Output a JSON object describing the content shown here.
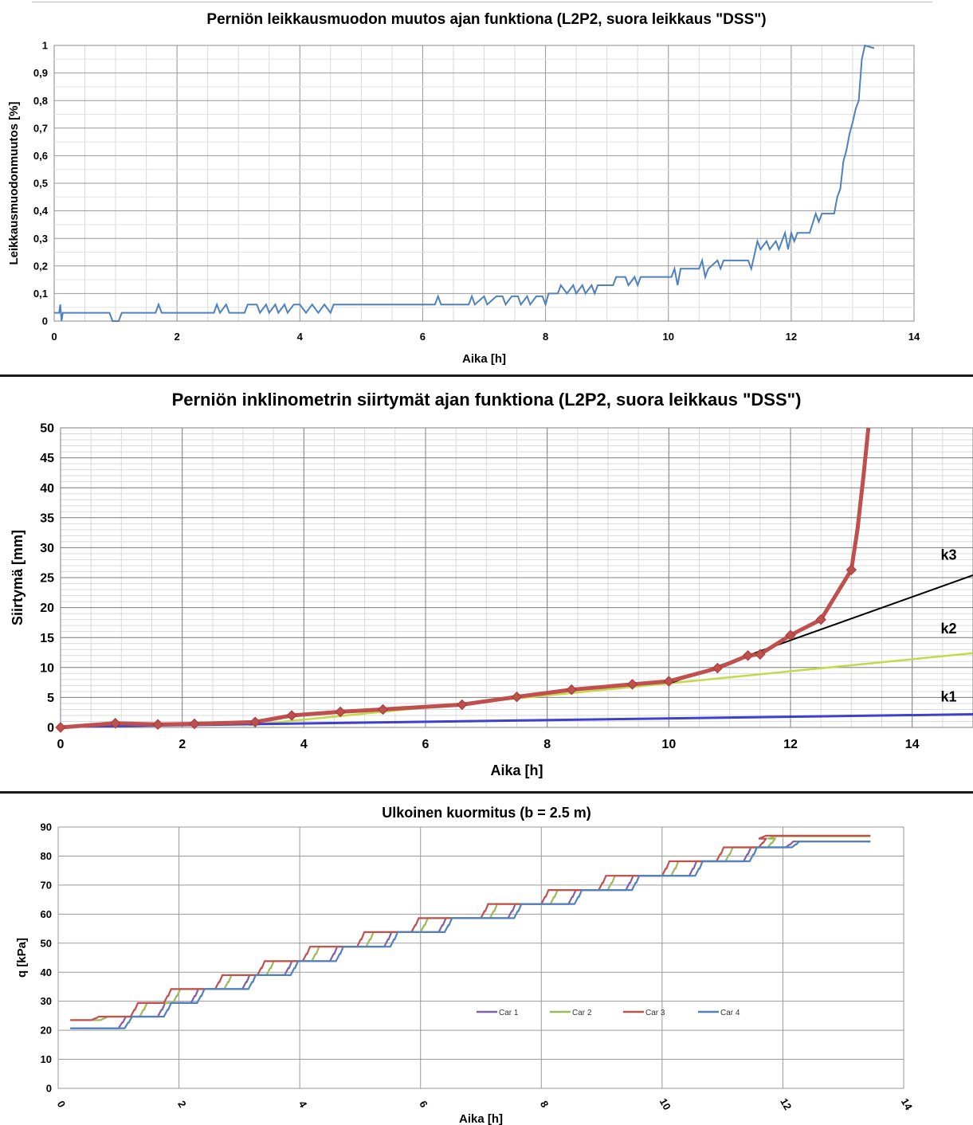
{
  "chart_data": [
    {
      "type": "line",
      "title": "Perniön leikkausmuodon muutos ajan funktiona (L2P2, suora leikkaus \"DSS\")",
      "xlabel": "Aika [h]",
      "ylabel": "Leikkausmuodonmuutos  [%]",
      "xlim": [
        0,
        14
      ],
      "ylim": [
        0,
        1
      ],
      "x_ticks": [
        "0",
        "2",
        "4",
        "6",
        "8",
        "10",
        "12",
        "14"
      ],
      "y_ticks": [
        "0",
        "0,1",
        "0,2",
        "0,3",
        "0,4",
        "0,5",
        "0,6",
        "0,7",
        "0,8",
        "0,9",
        "1"
      ],
      "grid": true,
      "series": [
        {
          "color": "#4f81bd",
          "points": [
            [
              0.0,
              0.03
            ],
            [
              0.08,
              0.03
            ],
            [
              0.1,
              0.06
            ],
            [
              0.12,
              0.0
            ],
            [
              0.14,
              0.03
            ],
            [
              0.9,
              0.03
            ],
            [
              0.95,
              0.0
            ],
            [
              1.05,
              0.0
            ],
            [
              1.1,
              0.03
            ],
            [
              1.65,
              0.03
            ],
            [
              1.7,
              0.06
            ],
            [
              1.75,
              0.03
            ],
            [
              2.6,
              0.03
            ],
            [
              2.65,
              0.06
            ],
            [
              2.7,
              0.03
            ],
            [
              2.8,
              0.06
            ],
            [
              2.85,
              0.03
            ],
            [
              3.1,
              0.03
            ],
            [
              3.15,
              0.06
            ],
            [
              3.3,
              0.06
            ],
            [
              3.35,
              0.03
            ],
            [
              3.45,
              0.06
            ],
            [
              3.5,
              0.03
            ],
            [
              3.6,
              0.06
            ],
            [
              3.65,
              0.03
            ],
            [
              3.75,
              0.06
            ],
            [
              3.8,
              0.03
            ],
            [
              3.9,
              0.06
            ],
            [
              4.0,
              0.06
            ],
            [
              4.1,
              0.03
            ],
            [
              4.2,
              0.06
            ],
            [
              4.3,
              0.03
            ],
            [
              4.4,
              0.06
            ],
            [
              4.5,
              0.03
            ],
            [
              4.55,
              0.06
            ],
            [
              6.2,
              0.06
            ],
            [
              6.25,
              0.09
            ],
            [
              6.3,
              0.06
            ],
            [
              6.75,
              0.06
            ],
            [
              6.8,
              0.09
            ],
            [
              6.85,
              0.06
            ],
            [
              7.0,
              0.09
            ],
            [
              7.05,
              0.06
            ],
            [
              7.2,
              0.09
            ],
            [
              7.3,
              0.09
            ],
            [
              7.35,
              0.06
            ],
            [
              7.45,
              0.09
            ],
            [
              7.55,
              0.09
            ],
            [
              7.6,
              0.06
            ],
            [
              7.7,
              0.09
            ],
            [
              7.75,
              0.06
            ],
            [
              7.85,
              0.09
            ],
            [
              7.95,
              0.09
            ],
            [
              8.0,
              0.06
            ],
            [
              8.05,
              0.1
            ],
            [
              8.2,
              0.1
            ],
            [
              8.25,
              0.13
            ],
            [
              8.35,
              0.1
            ],
            [
              8.45,
              0.13
            ],
            [
              8.5,
              0.1
            ],
            [
              8.6,
              0.13
            ],
            [
              8.65,
              0.1
            ],
            [
              8.75,
              0.13
            ],
            [
              8.8,
              0.1
            ],
            [
              8.85,
              0.13
            ],
            [
              9.1,
              0.13
            ],
            [
              9.15,
              0.16
            ],
            [
              9.3,
              0.16
            ],
            [
              9.35,
              0.13
            ],
            [
              9.45,
              0.16
            ],
            [
              9.5,
              0.13
            ],
            [
              9.55,
              0.16
            ],
            [
              10.05,
              0.16
            ],
            [
              10.1,
              0.19
            ],
            [
              10.15,
              0.13
            ],
            [
              10.2,
              0.19
            ],
            [
              10.5,
              0.19
            ],
            [
              10.55,
              0.22
            ],
            [
              10.6,
              0.16
            ],
            [
              10.65,
              0.19
            ],
            [
              10.8,
              0.22
            ],
            [
              10.85,
              0.19
            ],
            [
              10.9,
              0.22
            ],
            [
              11.2,
              0.22
            ],
            [
              11.3,
              0.22
            ],
            [
              11.35,
              0.19
            ],
            [
              11.45,
              0.29
            ],
            [
              11.5,
              0.26
            ],
            [
              11.6,
              0.29
            ],
            [
              11.65,
              0.26
            ],
            [
              11.75,
              0.29
            ],
            [
              11.8,
              0.26
            ],
            [
              11.9,
              0.32
            ],
            [
              11.95,
              0.26
            ],
            [
              12.0,
              0.32
            ],
            [
              12.05,
              0.29
            ],
            [
              12.1,
              0.32
            ],
            [
              12.3,
              0.32
            ],
            [
              12.4,
              0.39
            ],
            [
              12.45,
              0.36
            ],
            [
              12.5,
              0.39
            ],
            [
              12.7,
              0.39
            ],
            [
              12.75,
              0.45
            ],
            [
              12.8,
              0.48
            ],
            [
              12.85,
              0.58
            ],
            [
              12.9,
              0.62
            ],
            [
              12.95,
              0.68
            ],
            [
              13.0,
              0.72
            ],
            [
              13.05,
              0.77
            ],
            [
              13.1,
              0.8
            ],
            [
              13.15,
              0.95
            ],
            [
              13.2,
              1.0
            ],
            [
              13.35,
              0.99
            ]
          ]
        }
      ]
    },
    {
      "type": "line",
      "title": "Perniön inklinometrin siirtymät ajan funktiona (L2P2, suora leikkaus \"DSS\")",
      "xlabel": "Aika [h]",
      "ylabel": "Siirtymä  [mm]",
      "xlim": [
        0,
        15
      ],
      "ylim": [
        0,
        50
      ],
      "x_ticks": [
        "0",
        "2",
        "4",
        "6",
        "8",
        "10",
        "12",
        "14"
      ],
      "y_ticks": [
        "0",
        "5",
        "10",
        "15",
        "20",
        "25",
        "30",
        "35",
        "40",
        "45",
        "50"
      ],
      "grid": true,
      "annotations": [
        "k3",
        "k2",
        "k1"
      ],
      "series": [
        {
          "color": "#c0504d",
          "marker": "diamond",
          "points": [
            [
              0,
              0
            ],
            [
              0.9,
              0.7
            ],
            [
              1.6,
              0.5
            ],
            [
              2.2,
              0.6
            ],
            [
              3.2,
              0.9
            ],
            [
              3.8,
              2.0
            ],
            [
              4.6,
              2.6
            ],
            [
              5.3,
              3.0
            ],
            [
              6.6,
              3.8
            ],
            [
              7.5,
              5.1
            ],
            [
              8.4,
              6.3
            ],
            [
              9.4,
              7.2
            ],
            [
              10.0,
              7.7
            ],
            [
              10.8,
              9.9
            ],
            [
              11.3,
              12.0
            ],
            [
              11.5,
              12.2
            ],
            [
              12.0,
              15.4
            ],
            [
              12.5,
              18.0
            ],
            [
              13.0,
              26.3
            ],
            [
              13.1,
              33.0
            ],
            [
              13.2,
              42.0
            ],
            [
              13.28,
              50.0
            ]
          ]
        },
        {
          "color": "#c3d94a",
          "points": [
            [
              3.1,
              0.4
            ],
            [
              15.0,
              12.4
            ]
          ]
        },
        {
          "color": "#000000",
          "points": [
            [
              10.0,
              7.3
            ],
            [
              15.0,
              25.4
            ]
          ]
        },
        {
          "color": "#3f3fd0",
          "points": [
            [
              0.0,
              0.1
            ],
            [
              15.0,
              2.2
            ]
          ]
        }
      ]
    },
    {
      "type": "line",
      "title": "Ulkoinen kuormitus (b = 2.5 m)",
      "xlabel": "Aika [h]",
      "ylabel": "q [kPa]",
      "xlim": [
        0,
        14
      ],
      "ylim": [
        0,
        90
      ],
      "x_ticks": [
        "0",
        "2",
        "4",
        "6",
        "8",
        "10",
        "12",
        "14"
      ],
      "y_ticks": [
        "0",
        "10",
        "20",
        "30",
        "40",
        "50",
        "60",
        "70",
        "80",
        "90"
      ],
      "grid": true,
      "legend": "center-right",
      "series": [
        {
          "name": "Car 1",
          "color": "#7f5fa8",
          "start": 20.7,
          "offset": 0.45,
          "final": 85.0
        },
        {
          "name": "Car 2",
          "color": "#9bbb59",
          "start": 23.5,
          "offset": 0.15,
          "final": 86.8
        },
        {
          "name": "Car 3",
          "color": "#c0504d",
          "start": 23.5,
          "offset": 0.0,
          "final": 87.0
        },
        {
          "name": "Car 4",
          "color": "#4f81bd",
          "start": 20.7,
          "offset": 0.55,
          "final": 85.0
        }
      ],
      "steps": {
        "times": [
          0.55,
          1.2,
          1.75,
          2.6,
          3.3,
          4.05,
          4.95,
          5.85,
          7.0,
          8.0,
          8.95,
          10.0,
          10.9,
          11.6
        ],
        "levels": [
          24.7,
          29.4,
          34.2,
          39.0,
          43.8,
          48.8,
          53.8,
          58.6,
          63.5,
          68.3,
          73.2,
          78.2,
          83.0,
          86.0
        ],
        "end_time": 13.45
      }
    }
  ]
}
